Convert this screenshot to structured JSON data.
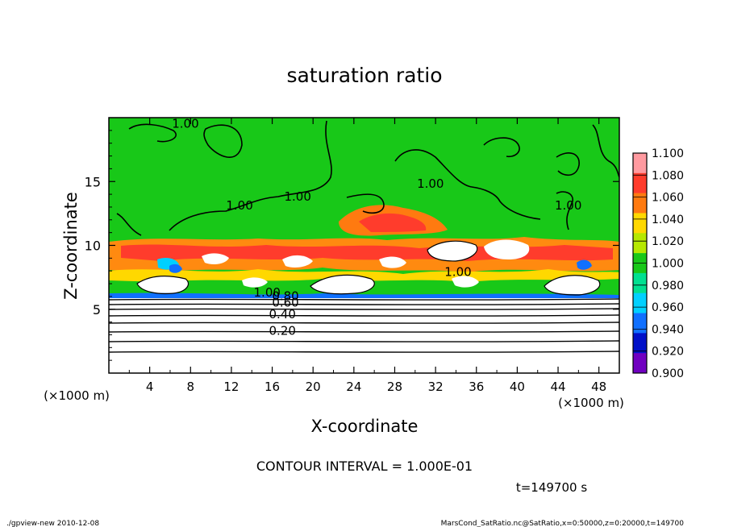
{
  "chart_data": {
    "type": "heatmap",
    "title": "saturation ratio",
    "xlabel": "X-coordinate",
    "ylabel": "Z-coordinate",
    "x_unit": "(×1000 m)",
    "y_unit": "(×1000 m)",
    "xlim": [
      0,
      50
    ],
    "ylim": [
      0,
      20
    ],
    "x_ticks": [
      "4",
      "8",
      "12",
      "16",
      "20",
      "24",
      "28",
      "32",
      "36",
      "40",
      "44",
      "48"
    ],
    "x_tick_values": [
      4,
      8,
      12,
      16,
      20,
      24,
      28,
      32,
      36,
      40,
      44,
      48
    ],
    "y_ticks": [
      "5",
      "10",
      "15"
    ],
    "y_tick_values": [
      5,
      10,
      15
    ],
    "colorbar": {
      "levels": [
        "1.100",
        "1.080",
        "1.060",
        "1.040",
        "1.020",
        "1.000",
        "0.980",
        "0.960",
        "0.940",
        "0.920",
        "0.900"
      ],
      "colors": [
        "#ff9aa0",
        "#ff3c2c",
        "#ff7a10",
        "#ffd800",
        "#b6e800",
        "#18c818",
        "#00e090",
        "#00d0ff",
        "#1070ff",
        "#0010c8",
        "#7000c0"
      ]
    },
    "contour_labels": [
      {
        "text": "1.00",
        "x": 7.5,
        "z": 19.2
      },
      {
        "text": "1.00",
        "x": 12.8,
        "z": 12.8
      },
      {
        "text": "1.00",
        "x": 18.5,
        "z": 13.5
      },
      {
        "text": "1.00",
        "x": 31.5,
        "z": 14.5
      },
      {
        "text": "1.00",
        "x": 45.0,
        "z": 12.8
      },
      {
        "text": "1.00",
        "x": 34.2,
        "z": 7.6
      },
      {
        "text": "1.00",
        "x": 15.5,
        "z": 6.0
      },
      {
        "text": "0.80",
        "x": 17.3,
        "z": 5.7
      },
      {
        "text": "0.60",
        "x": 17.3,
        "z": 5.2
      },
      {
        "text": "0.40",
        "x": 17.0,
        "z": 4.3
      },
      {
        "text": "0.20",
        "x": 17.0,
        "z": 3.0
      }
    ],
    "contour_interval": "CONTOUR INTERVAL = 1.000E-01",
    "time_label": "t=149700 s"
  },
  "footer": {
    "left": "./gpview-new  2010-12-08",
    "right": "MarsCond_SatRatio.nc@SatRatio,x=0:50000,z=0:20000,t=149700"
  }
}
